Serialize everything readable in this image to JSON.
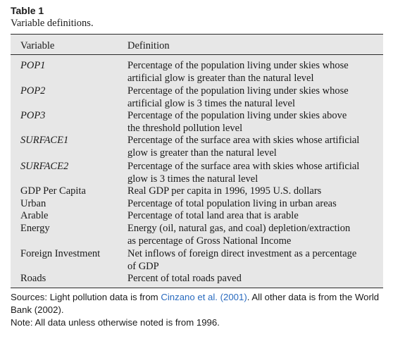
{
  "table": {
    "label": "Table 1",
    "caption": "Variable definitions.",
    "headers": {
      "variable": "Variable",
      "definition": "Definition"
    },
    "rows": [
      {
        "variable": "POP1",
        "italic": true,
        "definition": [
          "Percentage of the population living under skies whose",
          "artificial glow is greater than the natural level"
        ]
      },
      {
        "variable": "POP2",
        "italic": true,
        "definition": [
          "Percentage of the population living under skies whose",
          "artificial glow is 3 times the natural level"
        ]
      },
      {
        "variable": "POP3",
        "italic": true,
        "definition": [
          "Percentage of the population living under skies above",
          "the threshold pollution level"
        ]
      },
      {
        "variable": "SURFACE1",
        "italic": true,
        "definition": [
          "Percentage of the surface area with skies whose artificial",
          "glow is greater than the natural level"
        ]
      },
      {
        "variable": "SURFACE2",
        "italic": true,
        "definition": [
          "Percentage of the surface area with skies whose artificial",
          "glow is 3 times the natural level"
        ]
      },
      {
        "variable": "GDP Per Capita",
        "italic": false,
        "definition": [
          "Real GDP per capita in 1996, 1995 U.S. dollars"
        ]
      },
      {
        "variable": "Urban",
        "italic": false,
        "definition": [
          "Percentage of total population living in urban areas"
        ]
      },
      {
        "variable": "Arable",
        "italic": false,
        "definition": [
          "Percentage of total land area that is arable"
        ]
      },
      {
        "variable": "Energy",
        "italic": false,
        "definition": [
          "Energy (oil, natural gas, and coal) depletion/extraction",
          "as percentage of Gross National Income"
        ]
      },
      {
        "variable": "Foreign Investment",
        "italic": false,
        "definition": [
          "Net inflows of foreign direct investment as a percentage",
          "of GDP"
        ]
      },
      {
        "variable": "Roads",
        "italic": false,
        "definition": [
          "Percent of total roads paved"
        ]
      }
    ]
  },
  "notes": {
    "sources_prefix": "Sources: Light pollution data is from ",
    "sources_link": "Cinzano et al. (2001)",
    "sources_suffix": ". All other data is from the World Bank (2002).",
    "note": "Note: All data unless otherwise noted is from 1996."
  }
}
